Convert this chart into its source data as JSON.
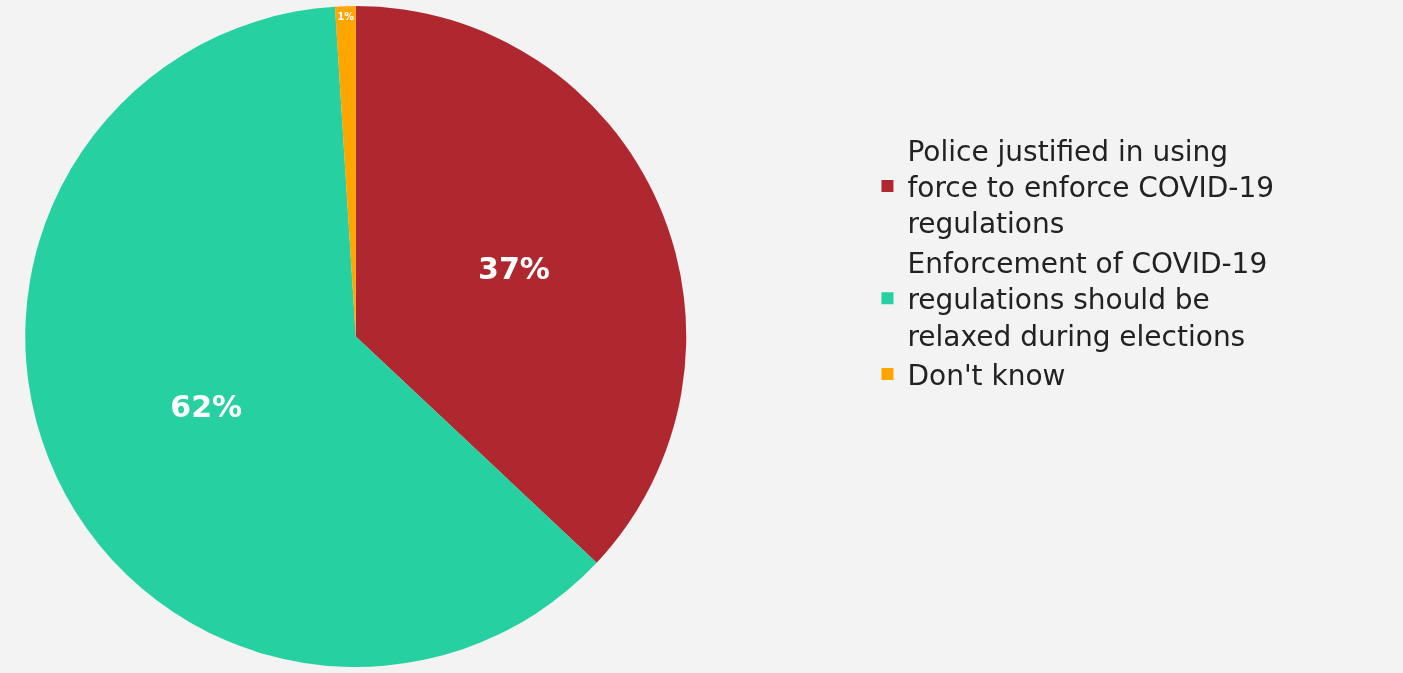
{
  "chart_data": {
    "type": "pie",
    "categories": [
      "Police justified in using force to enforce COVID-19 regulations",
      "Enforcement of COVID-19 regulations should be relaxed during elections",
      "Don't know"
    ],
    "values": [
      37,
      62,
      1
    ],
    "colors": [
      "#b0282f",
      "#26d0a1",
      "#ffa500"
    ],
    "value_labels": [
      "37%",
      "62%",
      "1%"
    ],
    "legend": "right"
  }
}
